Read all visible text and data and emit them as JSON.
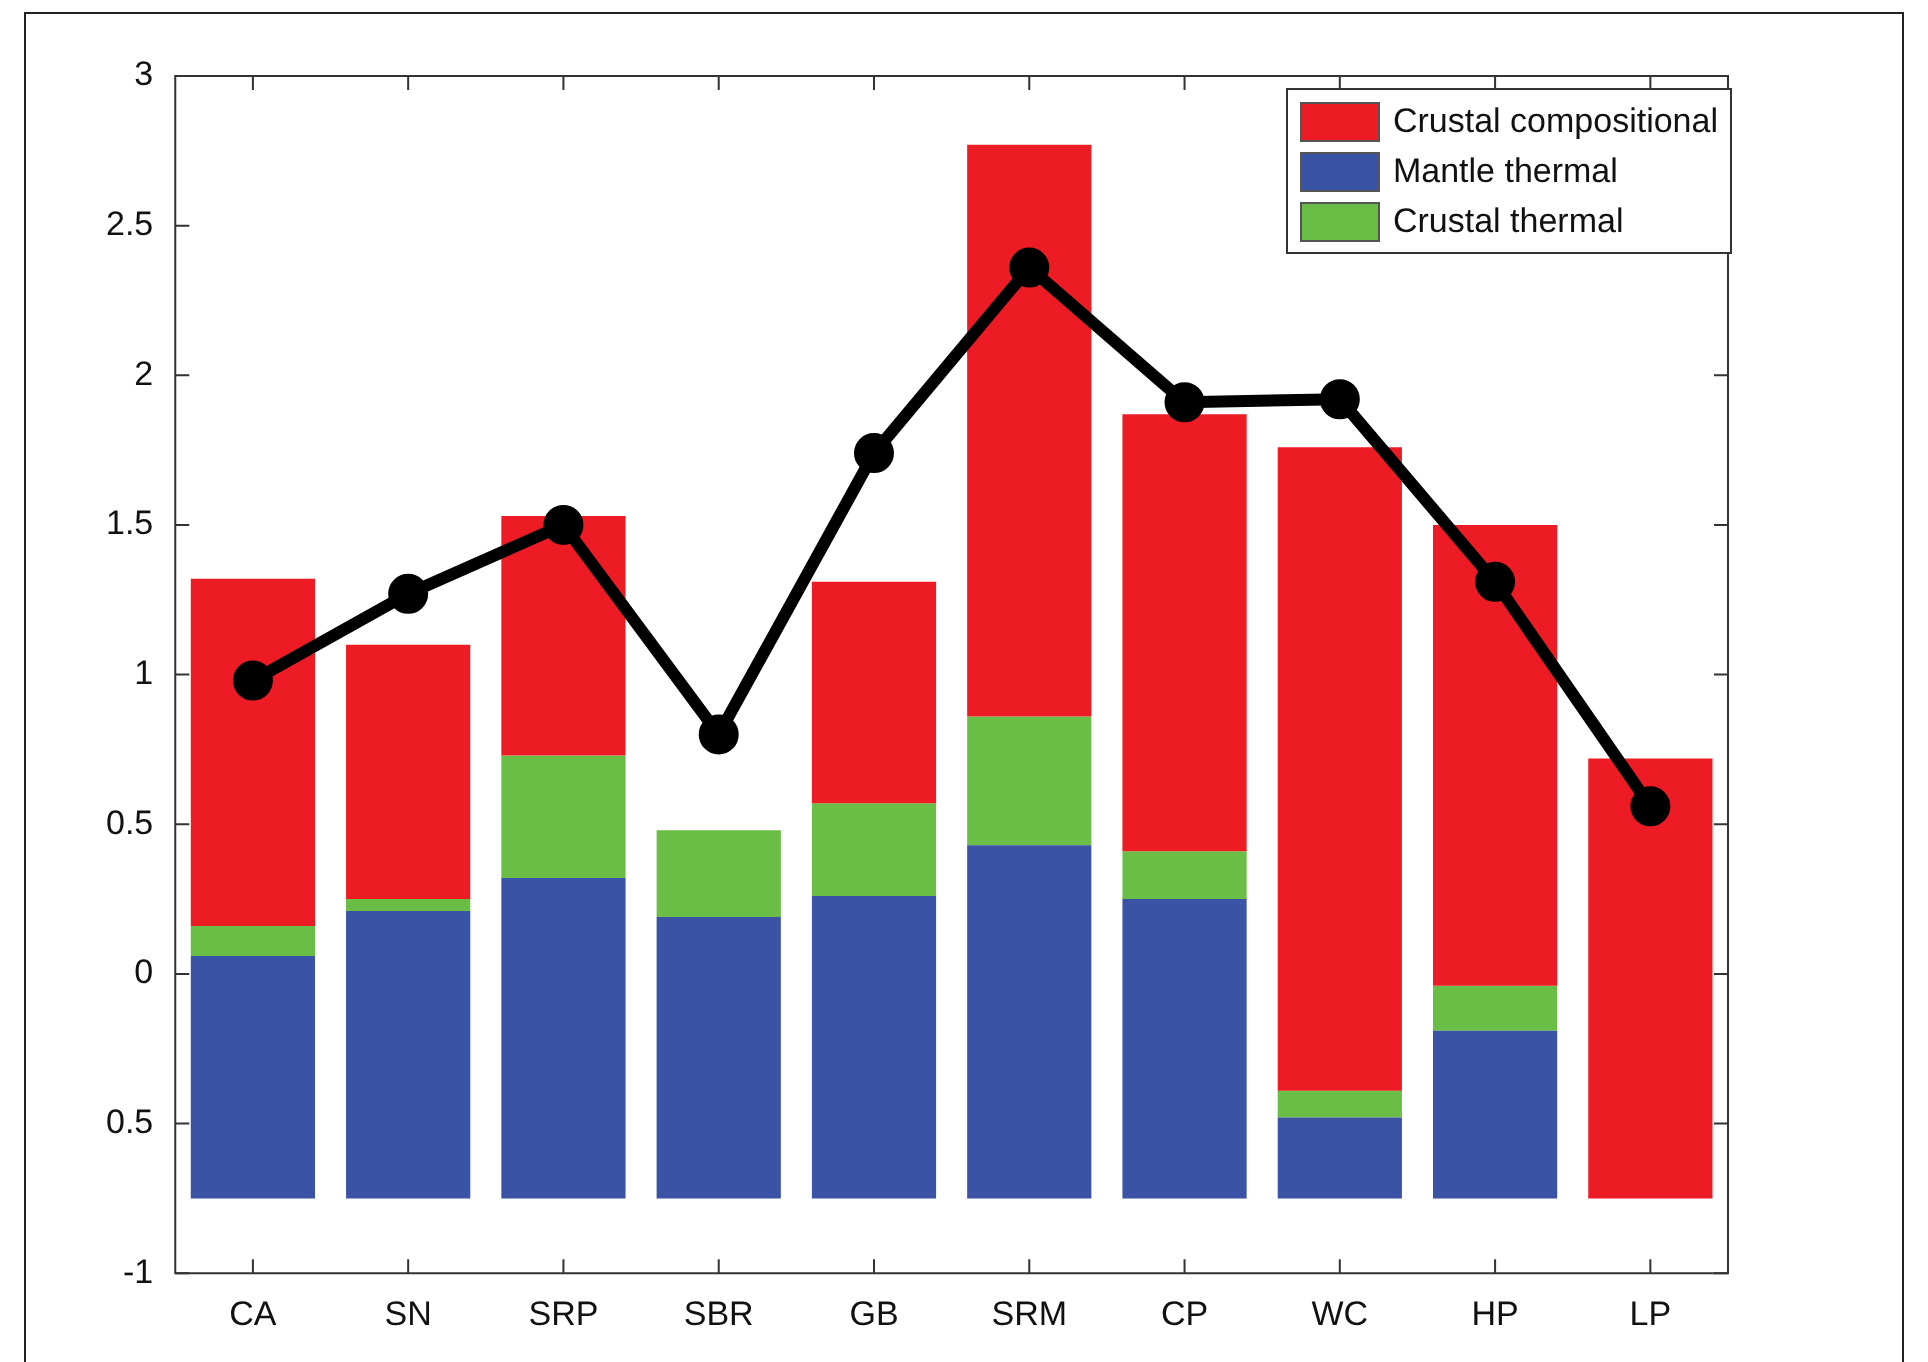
{
  "chart_data": {
    "type": "bar",
    "categories": [
      "CA",
      "SN",
      "SRP",
      "SBR",
      "GB",
      "SRM",
      "CP",
      "WC",
      "HP",
      "LP"
    ],
    "series": [
      {
        "name": "Crustal compositional",
        "color": "#ed1c24",
        "base": [
          0.16,
          0.25,
          0.73,
          null,
          0.57,
          0.86,
          0.41,
          -0.39,
          -0.04,
          -0.75
        ],
        "values": [
          1.16,
          0.85,
          0.8,
          null,
          0.74,
          1.91,
          1.46,
          2.15,
          1.54,
          1.47
        ]
      },
      {
        "name": "Mantle thermal",
        "color": "#3a53a4",
        "base": [
          -0.75,
          -0.75,
          -0.75,
          -0.75,
          -0.75,
          -0.75,
          -0.75,
          -0.75,
          -0.75,
          null
        ],
        "values": [
          0.81,
          0.96,
          1.07,
          0.94,
          1.01,
          1.18,
          1.0,
          0.27,
          0.56,
          null
        ]
      },
      {
        "name": "Crustal thermal",
        "color": "#6abd45",
        "base": [
          0.06,
          0.21,
          0.32,
          0.19,
          0.26,
          0.43,
          0.25,
          -0.48,
          -0.19,
          null
        ],
        "values": [
          0.1,
          0.04,
          0.41,
          0.29,
          0.31,
          0.43,
          0.16,
          0.09,
          0.15,
          null
        ]
      },
      {
        "type": "line",
        "color": "#000000",
        "marker": "circle",
        "values": [
          0.98,
          1.27,
          1.5,
          0.8,
          1.74,
          2.36,
          1.91,
          1.92,
          1.31,
          0.56
        ]
      }
    ],
    "ylim": [
      -1,
      3
    ],
    "yticks": [
      -1,
      {
        "value": -0.5,
        "label": "0.5"
      },
      0,
      0.5,
      1,
      1.5,
      2,
      2.5,
      3
    ],
    "grid": false,
    "legend": "top right"
  }
}
